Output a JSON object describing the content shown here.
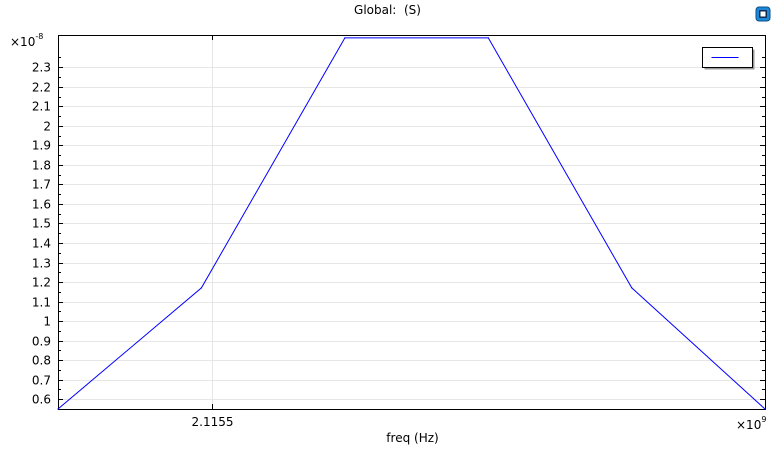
{
  "title": "Global:  (S)",
  "y_multiplier": {
    "base": "×10",
    "exponent": "-8"
  },
  "x_multiplier": {
    "base": "×10",
    "exponent": "9"
  },
  "colors": {
    "line": "#0000ff",
    "grid": "#e6e6e6",
    "axis": "#000000"
  },
  "icons": {
    "logo": "comsol-logo-icon"
  },
  "chart_data": {
    "type": "line",
    "title": "Global:  (S)",
    "xlabel": "freq (Hz)",
    "ylabel": "",
    "x_ticks": [
      2.1155
    ],
    "x_tick_labels": [
      "2.1155"
    ],
    "y_ticks": [
      0.6,
      0.7,
      0.8,
      0.9,
      1,
      1.1,
      1.2,
      1.3,
      1.4,
      1.5,
      1.6,
      1.7,
      1.8,
      1.9,
      2,
      2.1,
      2.2,
      2.3
    ],
    "y_tick_labels": [
      "0.6",
      "0.7",
      "0.8",
      "0.9",
      "1",
      "1.1",
      "1.2",
      "1.3",
      "1.4",
      "1.5",
      "1.6",
      "1.7",
      "1.8",
      "1.9",
      "2",
      "2.1",
      "2.2",
      "2.3"
    ],
    "xlim": [
      2.11535,
      2.11604
    ],
    "ylim": [
      0.55,
      2.465
    ],
    "grid": true,
    "legend": {
      "location": "top-right",
      "entries": [
        ""
      ]
    },
    "series": [
      {
        "color": "#0000ff",
        "x": [
          2.11535,
          2.11549,
          2.11563,
          2.11577,
          2.11591,
          2.11604
        ],
        "y": [
          0.55,
          1.17,
          2.45,
          2.45,
          1.17,
          0.55
        ]
      }
    ]
  }
}
